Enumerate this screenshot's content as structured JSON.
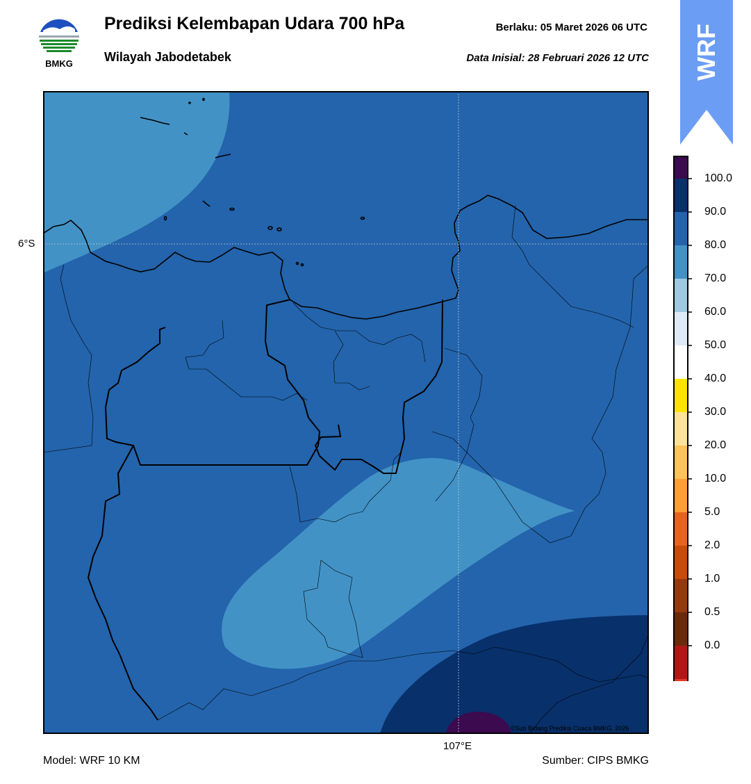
{
  "header": {
    "title": "Prediksi Kelembapan Udara 700 hPa",
    "subtitle": "Wilayah Jabodetabek",
    "valid_label": "Berlaku:  05 Maret 2026 06 UTC",
    "init_label": "Data Inisial:  28 Februari 2026 12 UTC"
  },
  "logo": {
    "text": "BMKG",
    "icon": "bmkg-logo-icon"
  },
  "badge": {
    "text": "WRF",
    "color": "#6b9df5"
  },
  "map": {
    "lat_label": "6°S",
    "lon_label": "107°E",
    "credit": "©Sub Bidang Prediksi Cuaca BMKG, 2026",
    "field_colors": {
      "base": "#2364ac",
      "light": "#4292c6",
      "dark": "#08306b",
      "max": "#3b0a4f"
    }
  },
  "colorbar": {
    "ticks": [
      "100.0",
      "90.0",
      "80.0",
      "70.0",
      "60.0",
      "50.0",
      "40.0",
      "30.0",
      "20.0",
      "10.0",
      "5.0",
      "2.0",
      "1.0",
      "0.5",
      "0.0"
    ],
    "colors": [
      "#3b0a4f",
      "#08306b",
      "#2364ac",
      "#4292c6",
      "#9ecae1",
      "#deebf7",
      "#ffffff",
      "#ffe300",
      "#ffe29a",
      "#ffc35a",
      "#ff9f33",
      "#e8641e",
      "#c84b0a",
      "#953a0c",
      "#6b2a0c",
      "#b01818",
      "#e03a2a"
    ]
  },
  "footer": {
    "model": "Model: WRF 10 KM",
    "source": "Sumber: CIPS BMKG"
  }
}
